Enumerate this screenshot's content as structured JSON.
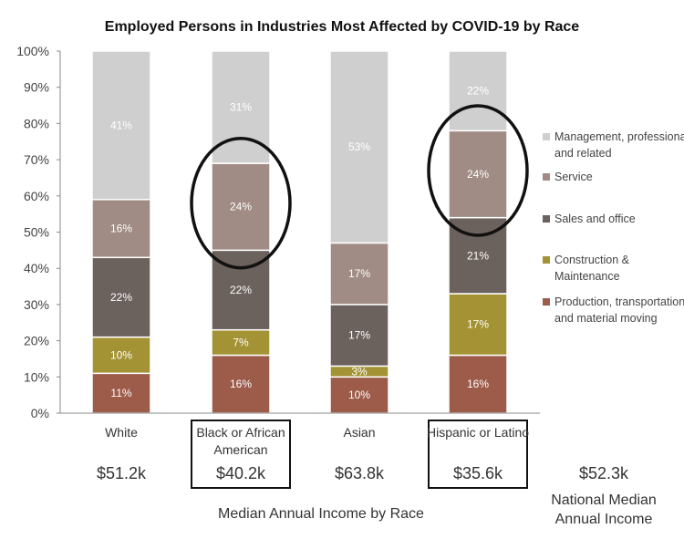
{
  "chart_data": {
    "type": "bar",
    "stacked": true,
    "title": "Employed Persons in Industries Most Affected by COVID-19 by Race",
    "xlabel": "Median Annual Income by Race",
    "ylim": [
      0,
      100
    ],
    "y_ticks": [
      "0%",
      "10%",
      "20%",
      "30%",
      "40%",
      "50%",
      "60%",
      "70%",
      "80%",
      "90%",
      "100%"
    ],
    "categories": [
      {
        "label": [
          "White"
        ],
        "income": "$51.2k",
        "boxed": false
      },
      {
        "label": [
          "Black or African",
          "American"
        ],
        "income": "$40.2k",
        "boxed": true
      },
      {
        "label": [
          "Asian"
        ],
        "income": "$63.8k",
        "boxed": false
      },
      {
        "label": [
          "Hispanic or Latino"
        ],
        "income": "$35.6k",
        "boxed": true
      }
    ],
    "series": [
      {
        "name": "Production, transportation, and material moving",
        "legend_lines": [
          "Production, transportation,",
          "and material moving"
        ],
        "color": "#9d5b4a",
        "values": [
          11,
          16,
          10,
          16
        ],
        "labels": [
          "11%",
          "16%",
          "10%",
          "16%"
        ]
      },
      {
        "name": "Construction & Maintenance",
        "legend_lines": [
          "Construction &",
          "Maintenance"
        ],
        "color": "#a39334",
        "values": [
          10,
          7,
          3,
          17
        ],
        "labels": [
          "10%",
          "7%",
          "3%",
          "17%"
        ]
      },
      {
        "name": "Sales and office",
        "legend_lines": [
          "Sales and office"
        ],
        "color": "#6b615d",
        "values": [
          22,
          22,
          17,
          21
        ],
        "labels": [
          "22%",
          "22%",
          "17%",
          "21%"
        ]
      },
      {
        "name": "Service",
        "legend_lines": [
          "Service"
        ],
        "color": "#a08c84",
        "values": [
          16,
          24,
          17,
          24
        ],
        "labels": [
          "16%",
          "24%",
          "17%",
          "24%"
        ]
      },
      {
        "name": "Management, professional, and related",
        "legend_lines": [
          "Management, professional,",
          "and related"
        ],
        "color": "#cfcfcf",
        "values": [
          41,
          31,
          53,
          22
        ],
        "labels": [
          "41%",
          "31%",
          "53%",
          "22%"
        ]
      }
    ],
    "highlights": [
      {
        "category_index": 1,
        "series_index": 3
      },
      {
        "category_index": 3,
        "series_index": 3
      }
    ],
    "national": {
      "value": "$52.3k",
      "label": [
        "National Median",
        "Annual Income"
      ]
    }
  }
}
